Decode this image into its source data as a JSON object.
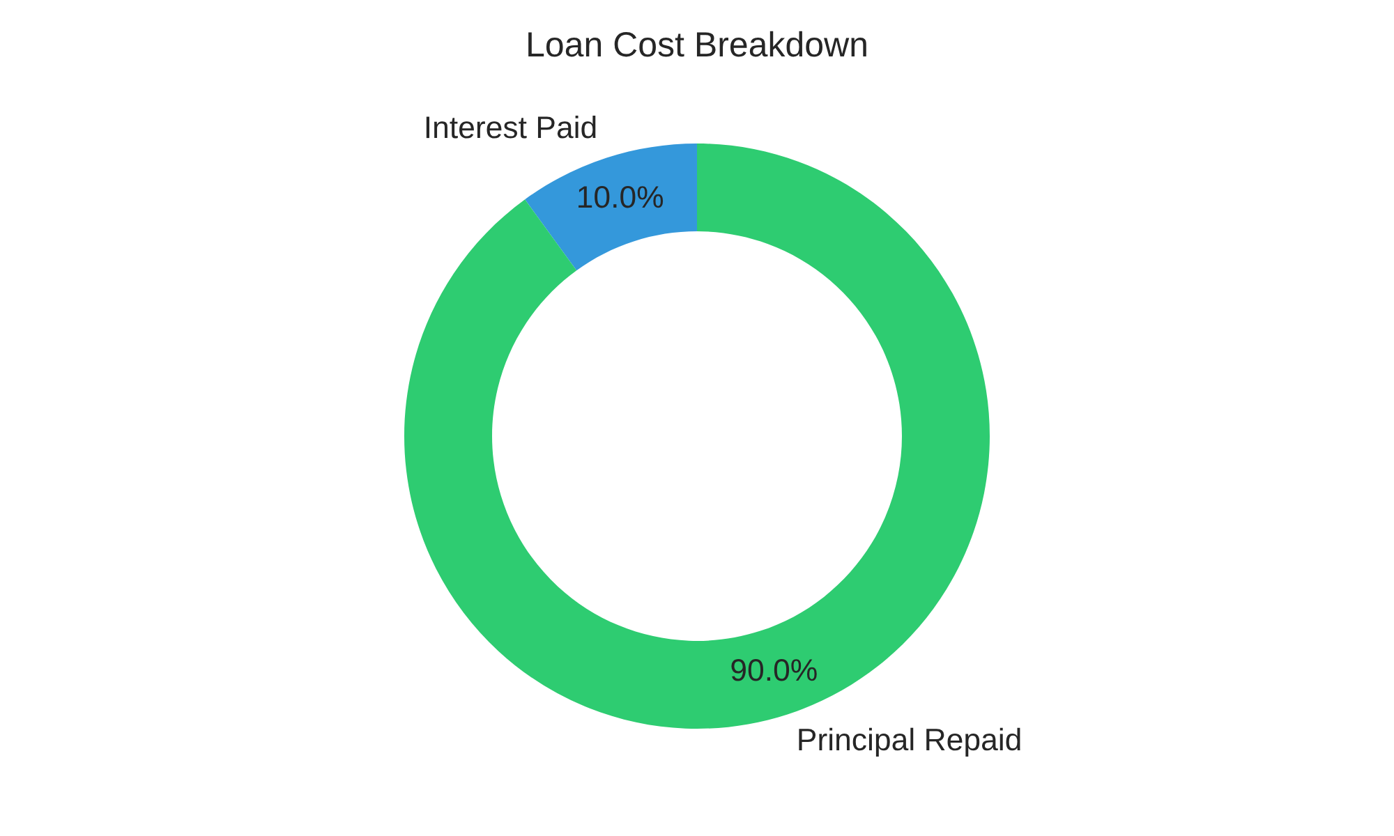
{
  "chart_data": {
    "type": "donut",
    "title": "Loan Cost Breakdown",
    "categories": [
      "Interest Paid",
      "Principal Repaid"
    ],
    "values": [
      10,
      90
    ],
    "colors": [
      "#3498db",
      "#2ecc71"
    ],
    "value_labels": [
      "10.0%",
      "90.0%"
    ]
  }
}
